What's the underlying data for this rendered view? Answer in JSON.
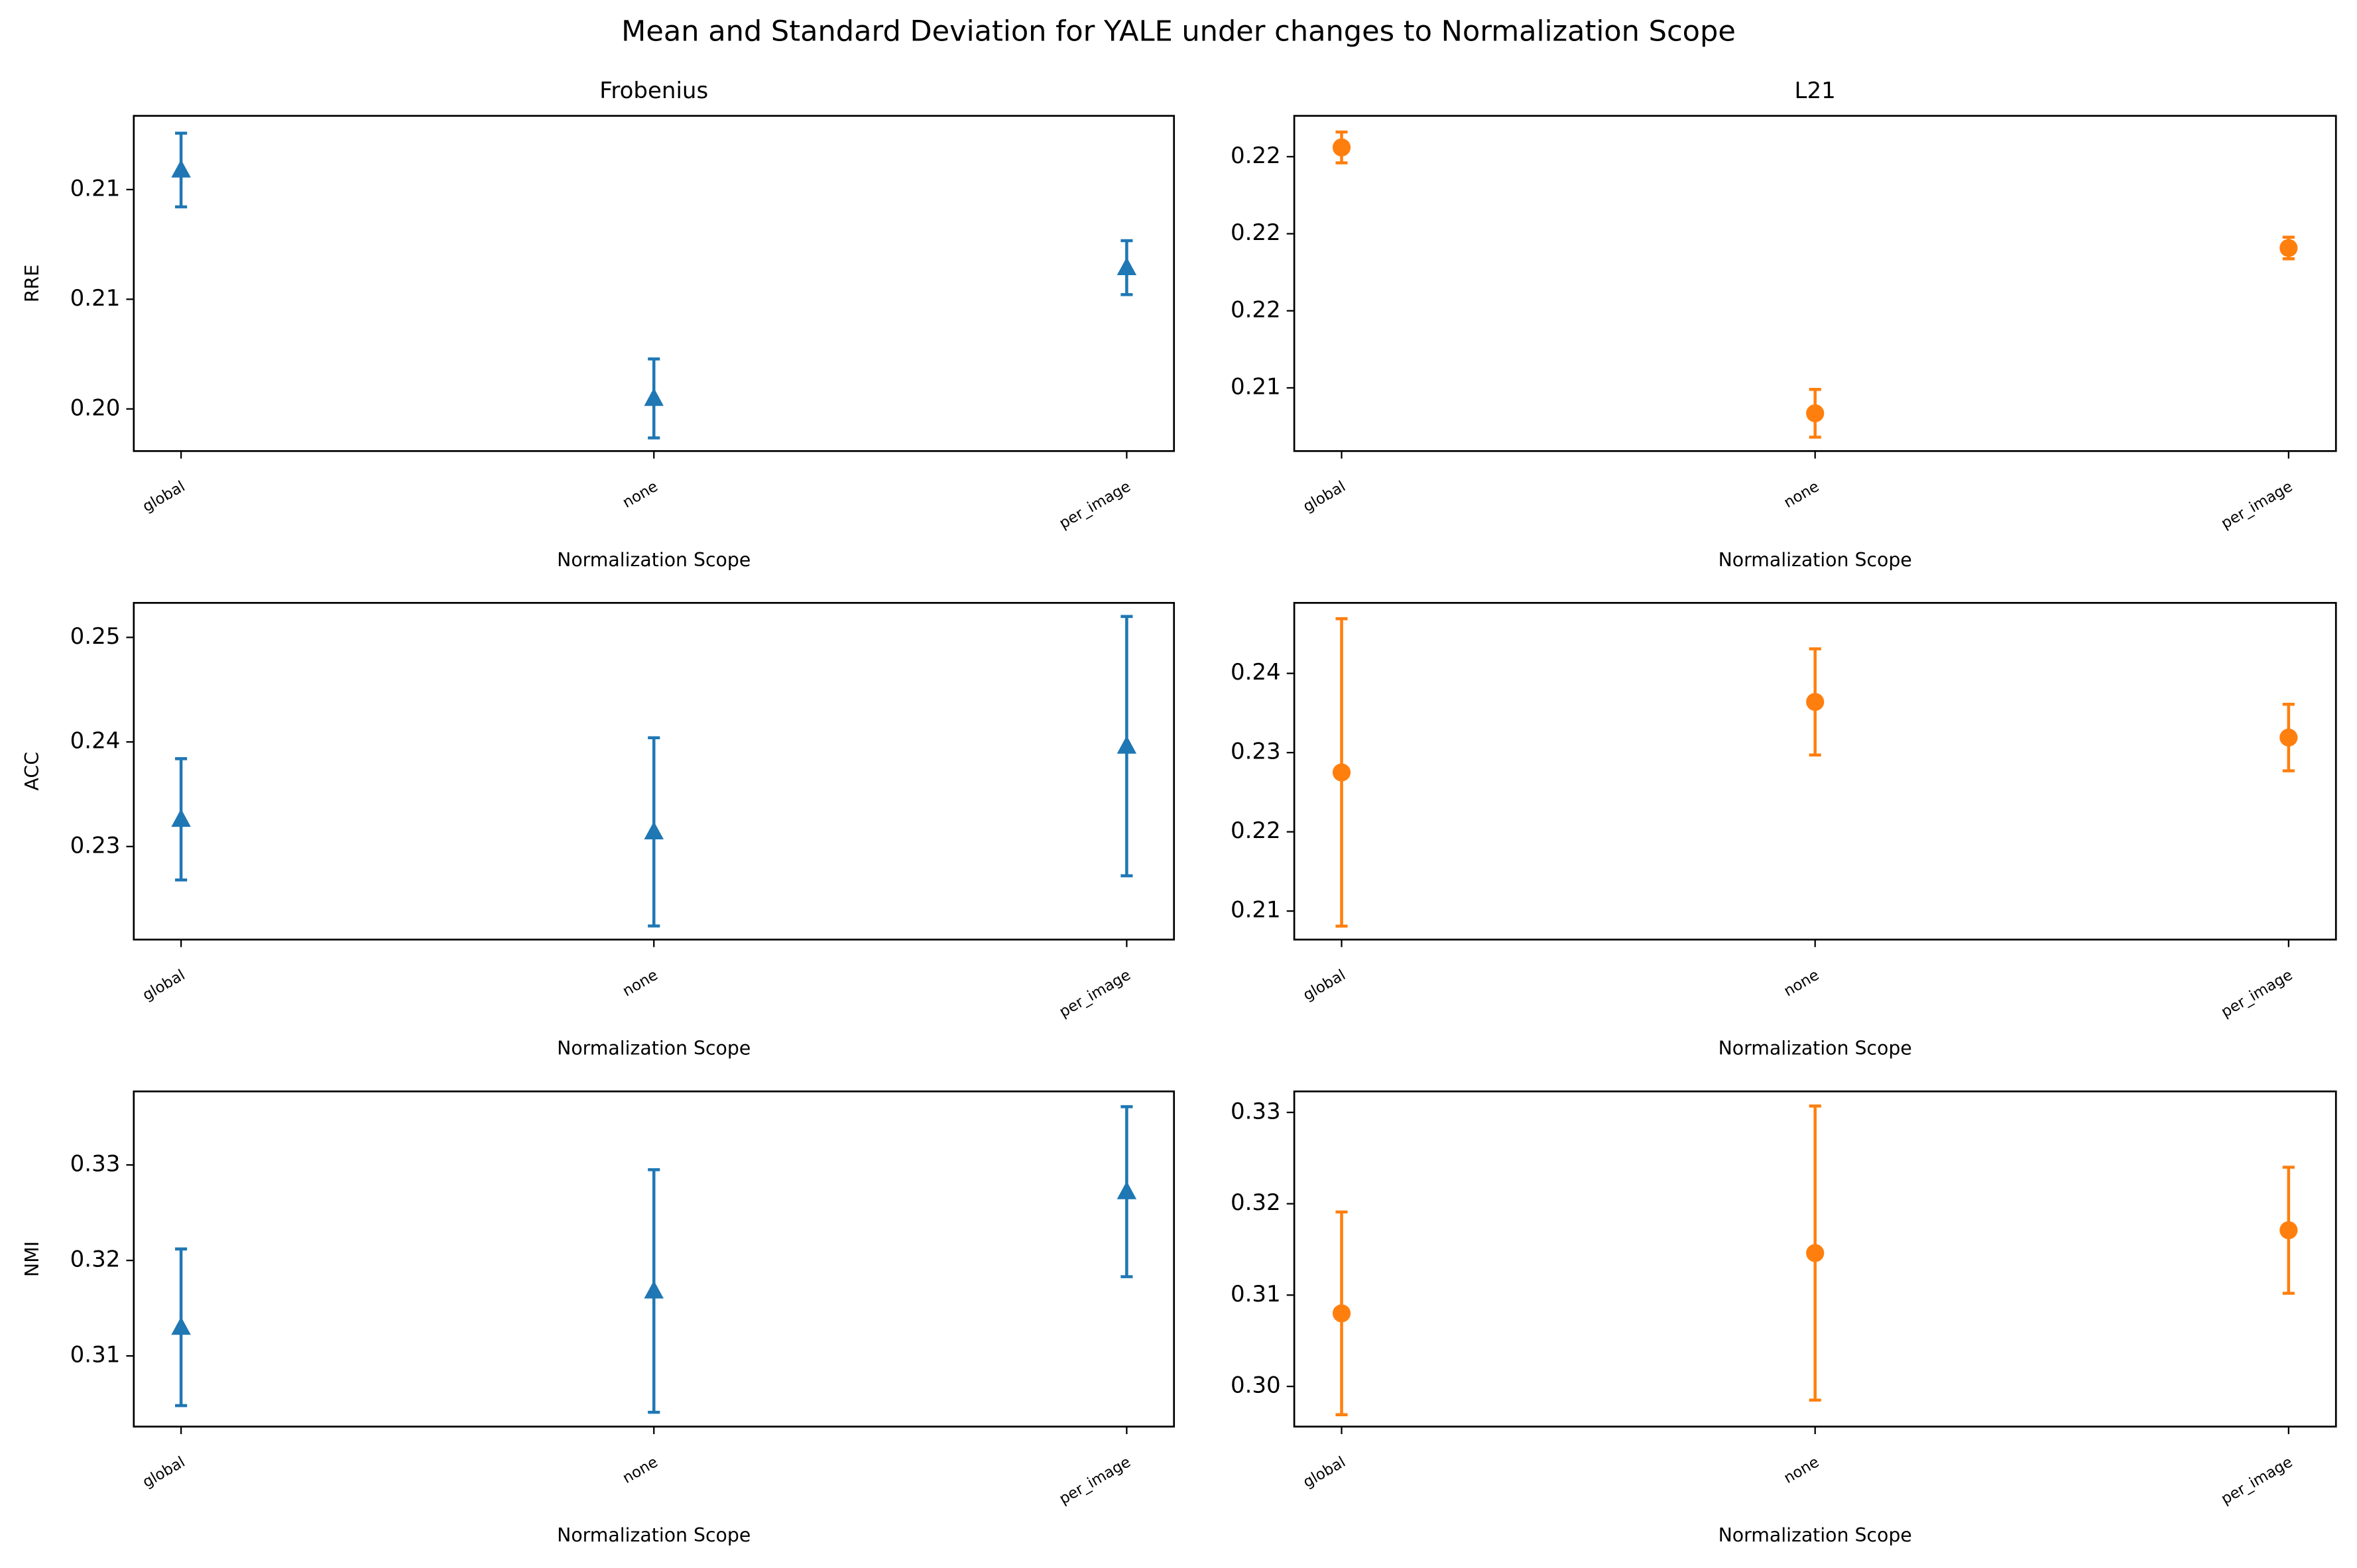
{
  "title": "Mean and Standard Deviation for YALE under changes to Normalization Scope",
  "chart_data": [
    {
      "type": "errorbar",
      "title": "Frobenius",
      "ylabel": "RRE",
      "xlabel": "Normalization Scope",
      "categories": [
        "global",
        "none",
        "per_image"
      ],
      "values": [
        0.21089,
        0.20048,
        0.20644
      ],
      "errors": [
        0.00168,
        0.0018,
        0.00123
      ],
      "color": "#1f77b4",
      "marker": "triangle",
      "ylim": [
        0.19808,
        0.21336
      ],
      "yticks": [
        {
          "value": 0.2,
          "label": "0.20"
        },
        {
          "value": 0.205,
          "label": "0.21"
        },
        0.21
      ]
    },
    {
      "type": "errorbar",
      "title": "L21",
      "xlabel": "Normalization Scope",
      "categories": [
        "global",
        "none",
        "per_image"
      ],
      "values": [
        0.22024,
        0.21334,
        0.21763
      ],
      "errors": [
        0.0004,
        0.00062,
        0.00028
      ],
      "color": "#ff7f0e",
      "marker": "circle",
      "ylim": [
        0.21236,
        0.22106
      ],
      "yticks": [
        {
          "value": 0.214,
          "label": "0.21"
        },
        {
          "value": 0.216,
          "label": "0.22"
        },
        {
          "value": 0.218,
          "label": "0.22"
        },
        0.22
      ]
    },
    {
      "type": "errorbar",
      "ylabel": "ACC",
      "xlabel": "Normalization Scope",
      "categories": [
        "global",
        "none",
        "per_image"
      ],
      "values": [
        0.2326,
        0.2314,
        0.2396
      ],
      "errors": [
        0.0058,
        0.009,
        0.0124
      ],
      "color": "#1f77b4",
      "marker": "triangle",
      "ylim": [
        0.2211,
        0.2533
      ],
      "yticks": [
        0.23,
        0.24,
        0.25
      ]
    },
    {
      "type": "errorbar",
      "xlabel": "Normalization Scope",
      "categories": [
        "global",
        "none",
        "per_image"
      ],
      "values": [
        0.2275,
        0.2364,
        0.2319
      ],
      "errors": [
        0.0194,
        0.0067,
        0.0042
      ],
      "color": "#ff7f0e",
      "marker": "circle",
      "ylim": [
        0.2064,
        0.2489
      ],
      "yticks": [
        0.21,
        0.22,
        0.23,
        0.24
      ]
    },
    {
      "type": "errorbar",
      "ylabel": "NMI",
      "xlabel": "Normalization Scope",
      "categories": [
        "global",
        "none",
        "per_image"
      ],
      "values": [
        0.313,
        0.3168,
        0.3272
      ],
      "errors": [
        0.0082,
        0.0127,
        0.0089
      ],
      "color": "#1f77b4",
      "marker": "triangle",
      "ylim": [
        0.3026,
        0.3377
      ],
      "yticks": [
        0.31,
        0.32,
        0.33
      ]
    },
    {
      "type": "errorbar",
      "xlabel": "Normalization Scope",
      "categories": [
        "global",
        "none",
        "per_image"
      ],
      "values": [
        0.308,
        0.3146,
        0.3171
      ],
      "errors": [
        0.0111,
        0.0161,
        0.0069
      ],
      "color": "#ff7f0e",
      "marker": "circle",
      "ylim": [
        0.2956,
        0.3323
      ],
      "yticks": [
        {
          "value": 0.3,
          "label": "0.30"
        },
        0.31,
        0.32,
        0.33
      ]
    }
  ]
}
